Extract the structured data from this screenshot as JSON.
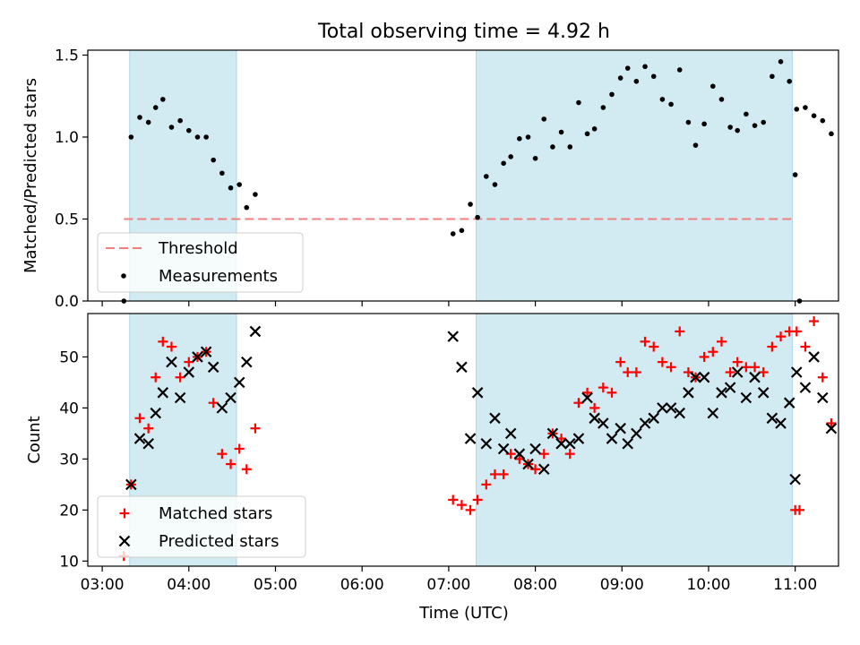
{
  "chart_data": [
    {
      "type": "scatter",
      "title": "Total observing time = 4.92 h",
      "ylabel": "Matched/Predicted stars",
      "xlabel": "",
      "xlim": [
        "02:50",
        "11:30"
      ],
      "ylim": [
        0,
        1.53
      ],
      "yticks": [
        "0.0",
        "0.5",
        "1.0",
        "1.5"
      ],
      "shaded_intervals": [
        [
          "03:19",
          "04:33"
        ],
        [
          "07:19",
          "10:58"
        ]
      ],
      "shade_color": "#add8e6",
      "threshold": {
        "name": "Threshold",
        "value": 0.5,
        "x_range": [
          "03:15",
          "11:00"
        ],
        "color": "#f08080"
      },
      "legend": {
        "placement": "lower-left",
        "entries": [
          "Threshold",
          "Measurements"
        ]
      },
      "series": [
        {
          "name": "Measurements",
          "color": "#000000",
          "points": [
            [
              "03:15",
              0.0
            ],
            [
              "03:20",
              1.0
            ],
            [
              "03:26",
              1.12
            ],
            [
              "03:32",
              1.09
            ],
            [
              "03:37",
              1.18
            ],
            [
              "03:42",
              1.23
            ],
            [
              "03:48",
              1.06
            ],
            [
              "03:54",
              1.1
            ],
            [
              "04:00",
              1.04
            ],
            [
              "04:06",
              1.0
            ],
            [
              "04:12",
              1.0
            ],
            [
              "04:17",
              0.86
            ],
            [
              "04:23",
              0.78
            ],
            [
              "04:29",
              0.69
            ],
            [
              "04:35",
              0.71
            ],
            [
              "04:40",
              0.57
            ],
            [
              "04:46",
              0.65
            ],
            [
              "07:03",
              0.41
            ],
            [
              "07:09",
              0.43
            ],
            [
              "07:15",
              0.59
            ],
            [
              "07:20",
              0.51
            ],
            [
              "07:26",
              0.76
            ],
            [
              "07:32",
              0.71
            ],
            [
              "07:38",
              0.84
            ],
            [
              "07:43",
              0.88
            ],
            [
              "07:49",
              0.99
            ],
            [
              "07:55",
              1.0
            ],
            [
              "08:00",
              0.87
            ],
            [
              "08:06",
              1.11
            ],
            [
              "08:12",
              0.94
            ],
            [
              "08:18",
              1.03
            ],
            [
              "08:24",
              0.94
            ],
            [
              "08:30",
              1.21
            ],
            [
              "08:36",
              1.02
            ],
            [
              "08:41",
              1.05
            ],
            [
              "08:47",
              1.18
            ],
            [
              "08:53",
              1.26
            ],
            [
              "08:59",
              1.36
            ],
            [
              "09:04",
              1.42
            ],
            [
              "09:10",
              1.34
            ],
            [
              "09:16",
              1.43
            ],
            [
              "09:22",
              1.37
            ],
            [
              "09:28",
              1.23
            ],
            [
              "09:34",
              1.2
            ],
            [
              "09:40",
              1.41
            ],
            [
              "09:46",
              1.09
            ],
            [
              "09:51",
              0.95
            ],
            [
              "09:57",
              1.08
            ],
            [
              "10:03",
              1.31
            ],
            [
              "10:09",
              1.23
            ],
            [
              "10:15",
              1.06
            ],
            [
              "10:20",
              1.04
            ],
            [
              "10:26",
              1.14
            ],
            [
              "10:32",
              1.07
            ],
            [
              "10:38",
              1.09
            ],
            [
              "10:44",
              1.37
            ],
            [
              "10:50",
              1.46
            ],
            [
              "10:56",
              1.34
            ],
            [
              "11:01",
              1.17
            ],
            [
              "11:07",
              1.18
            ],
            [
              "11:13",
              1.13
            ],
            [
              "11:19",
              1.1
            ],
            [
              "11:25",
              1.02
            ],
            [
              "11:00",
              0.77
            ],
            [
              "11:03",
              0.0
            ]
          ]
        }
      ]
    },
    {
      "type": "scatter",
      "title": "",
      "ylabel": "Count",
      "xlabel": "Time (UTC)",
      "xlim": [
        "02:50",
        "11:30"
      ],
      "ylim": [
        9,
        58.5
      ],
      "yticks": [
        "10",
        "20",
        "30",
        "40",
        "50"
      ],
      "xticks": [
        "03:00",
        "04:00",
        "05:00",
        "06:00",
        "07:00",
        "08:00",
        "09:00",
        "10:00",
        "11:00"
      ],
      "shaded_intervals": [
        [
          "03:19",
          "04:33"
        ],
        [
          "07:19",
          "10:58"
        ]
      ],
      "shade_color": "#add8e6",
      "legend": {
        "placement": "lower-left",
        "entries": [
          "Matched stars",
          "Predicted stars"
        ]
      },
      "series": [
        {
          "name": "Matched stars",
          "marker": "plus",
          "color": "#ff0000",
          "points": [
            [
              "03:15",
              11
            ],
            [
              "03:20",
              25
            ],
            [
              "03:26",
              38
            ],
            [
              "03:32",
              36
            ],
            [
              "03:37",
              46
            ],
            [
              "03:42",
              53
            ],
            [
              "03:48",
              52
            ],
            [
              "03:54",
              46
            ],
            [
              "04:00",
              49
            ],
            [
              "04:06",
              50
            ],
            [
              "04:12",
              51
            ],
            [
              "04:17",
              41
            ],
            [
              "04:23",
              31
            ],
            [
              "04:29",
              29
            ],
            [
              "04:35",
              32
            ],
            [
              "04:40",
              28
            ],
            [
              "04:46",
              36
            ],
            [
              "07:03",
              22
            ],
            [
              "07:09",
              21
            ],
            [
              "07:15",
              20
            ],
            [
              "07:20",
              22
            ],
            [
              "07:26",
              25
            ],
            [
              "07:32",
              27
            ],
            [
              "07:38",
              27
            ],
            [
              "07:43",
              31
            ],
            [
              "07:49",
              30
            ],
            [
              "07:55",
              29
            ],
            [
              "08:00",
              28
            ],
            [
              "08:06",
              31
            ],
            [
              "08:12",
              35
            ],
            [
              "08:18",
              34
            ],
            [
              "08:24",
              31
            ],
            [
              "08:30",
              41
            ],
            [
              "08:36",
              43
            ],
            [
              "08:41",
              40
            ],
            [
              "08:47",
              44
            ],
            [
              "08:53",
              43
            ],
            [
              "08:59",
              49
            ],
            [
              "09:04",
              47
            ],
            [
              "09:10",
              47
            ],
            [
              "09:16",
              53
            ],
            [
              "09:22",
              52
            ],
            [
              "09:28",
              49
            ],
            [
              "09:34",
              48
            ],
            [
              "09:40",
              55
            ],
            [
              "09:46",
              47
            ],
            [
              "09:51",
              46
            ],
            [
              "09:57",
              50
            ],
            [
              "10:03",
              51
            ],
            [
              "10:09",
              53
            ],
            [
              "10:15",
              47
            ],
            [
              "10:20",
              49
            ],
            [
              "10:26",
              48
            ],
            [
              "10:32",
              48
            ],
            [
              "10:38",
              47
            ],
            [
              "10:44",
              52
            ],
            [
              "10:50",
              54
            ],
            [
              "10:56",
              55
            ],
            [
              "11:01",
              55
            ],
            [
              "11:07",
              52
            ],
            [
              "11:13",
              57
            ],
            [
              "11:19",
              46
            ],
            [
              "11:25",
              37
            ],
            [
              "11:00",
              20
            ],
            [
              "11:03",
              20
            ]
          ]
        },
        {
          "name": "Predicted stars",
          "marker": "x",
          "color": "#000000",
          "points": [
            [
              "03:20",
              25
            ],
            [
              "03:26",
              34
            ],
            [
              "03:32",
              33
            ],
            [
              "03:37",
              39
            ],
            [
              "03:42",
              43
            ],
            [
              "03:48",
              49
            ],
            [
              "03:54",
              42
            ],
            [
              "04:00",
              47
            ],
            [
              "04:06",
              50
            ],
            [
              "04:12",
              51
            ],
            [
              "04:17",
              48
            ],
            [
              "04:23",
              40
            ],
            [
              "04:29",
              42
            ],
            [
              "04:35",
              45
            ],
            [
              "04:40",
              49
            ],
            [
              "04:46",
              55
            ],
            [
              "07:03",
              54
            ],
            [
              "07:09",
              48
            ],
            [
              "07:15",
              34
            ],
            [
              "07:20",
              43
            ],
            [
              "07:26",
              33
            ],
            [
              "07:32",
              38
            ],
            [
              "07:38",
              32
            ],
            [
              "07:43",
              35
            ],
            [
              "07:49",
              31
            ],
            [
              "07:55",
              29
            ],
            [
              "08:00",
              32
            ],
            [
              "08:06",
              28
            ],
            [
              "08:12",
              35
            ],
            [
              "08:18",
              33
            ],
            [
              "08:24",
              33
            ],
            [
              "08:30",
              34
            ],
            [
              "08:36",
              42
            ],
            [
              "08:41",
              38
            ],
            [
              "08:47",
              37
            ],
            [
              "08:53",
              34
            ],
            [
              "08:59",
              36
            ],
            [
              "09:04",
              33
            ],
            [
              "09:10",
              35
            ],
            [
              "09:16",
              37
            ],
            [
              "09:22",
              38
            ],
            [
              "09:28",
              40
            ],
            [
              "09:34",
              40
            ],
            [
              "09:40",
              39
            ],
            [
              "09:46",
              43
            ],
            [
              "09:51",
              46
            ],
            [
              "09:57",
              46
            ],
            [
              "10:03",
              39
            ],
            [
              "10:09",
              43
            ],
            [
              "10:15",
              44
            ],
            [
              "10:20",
              47
            ],
            [
              "10:26",
              42
            ],
            [
              "10:32",
              46
            ],
            [
              "10:38",
              43
            ],
            [
              "10:44",
              38
            ],
            [
              "10:50",
              37
            ],
            [
              "10:56",
              41
            ],
            [
              "11:01",
              47
            ],
            [
              "11:07",
              44
            ],
            [
              "11:13",
              50
            ],
            [
              "11:19",
              42
            ],
            [
              "11:25",
              36
            ],
            [
              "11:00",
              26
            ]
          ]
        }
      ]
    }
  ]
}
